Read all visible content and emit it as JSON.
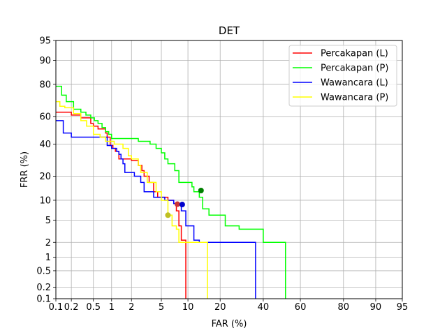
{
  "chart_data": {
    "type": "line",
    "title": "DET",
    "xlabel": "FAR (%)",
    "ylabel": "FRR (%)",
    "scale": "normal-deviate (probit)",
    "xlim": [
      0.1,
      95
    ],
    "ylim": [
      0.1,
      95
    ],
    "xticks": [
      0.1,
      0.2,
      0.5,
      1,
      2,
      5,
      10,
      20,
      40,
      60,
      80,
      90,
      95
    ],
    "xtick_labels": [
      "0.1",
      "0.2",
      "0.5",
      "1",
      "2",
      "5",
      "10",
      "20",
      "40",
      "60",
      "80",
      "90",
      "95"
    ],
    "yticks": [
      0.1,
      0.2,
      0.5,
      1,
      2,
      5,
      10,
      20,
      40,
      60,
      80,
      90,
      95
    ],
    "ytick_labels": [
      "0.1",
      "0.2",
      "0.5",
      "1",
      "2",
      "5",
      "10",
      "20",
      "40",
      "60",
      "80",
      "90",
      "95"
    ],
    "grid": true,
    "legend_position": "top-right",
    "series": [
      {
        "name": "Percakapan (L)",
        "color": "#ff0000",
        "x": [
          0.1,
          0.2,
          0.2,
          0.3,
          0.3,
          0.45,
          0.45,
          0.5,
          0.5,
          0.6,
          0.6,
          0.8,
          0.8,
          0.85,
          0.85,
          0.95,
          0.95,
          1.05,
          1.05,
          1.15,
          1.15,
          1.3,
          1.3,
          2.0,
          2.0,
          2.5,
          2.5,
          2.8,
          2.8,
          3.0,
          3.0,
          3.5,
          3.5,
          4.0,
          4.0,
          4.5,
          4.5,
          6.0,
          6.0,
          7.0,
          7.0,
          7.5,
          7.5,
          8.0,
          8.0,
          8.5,
          8.5,
          9.5,
          9.5,
          9.5
        ],
        "y": [
          63,
          63,
          61,
          61,
          59,
          59,
          55,
          55,
          53,
          53,
          51,
          51,
          48,
          48,
          45,
          45,
          39,
          39,
          37,
          37,
          35,
          35,
          30,
          30,
          29,
          29,
          26,
          26,
          23,
          23,
          20,
          20,
          17,
          17,
          13,
          13,
          11,
          11,
          10,
          10,
          9,
          9,
          7,
          7,
          4,
          4,
          2.2,
          2.2,
          2.0,
          0.1
        ]
      },
      {
        "name": "Percakapan (P)",
        "color": "#00ff00",
        "x": [
          0.1,
          0.13,
          0.13,
          0.16,
          0.16,
          0.22,
          0.22,
          0.3,
          0.3,
          0.37,
          0.37,
          0.45,
          0.45,
          0.52,
          0.52,
          0.6,
          0.6,
          0.7,
          0.7,
          0.8,
          0.8,
          0.9,
          0.9,
          1.0,
          1.0,
          2.5,
          2.5,
          3.6,
          3.6,
          4.3,
          4.3,
          5.0,
          5.0,
          5.5,
          5.5,
          6.0,
          6.0,
          7.2,
          7.2,
          8.0,
          8.0,
          11.0,
          11.0,
          11.5,
          11.5,
          13.0,
          13.0,
          14.0,
          14.0,
          16.0,
          16.0,
          22.0,
          22.0,
          28.0,
          28.0,
          40.0,
          40.0,
          52.0,
          52.0
        ],
        "y": [
          79,
          79,
          74,
          74,
          70,
          70,
          65,
          65,
          63,
          63,
          61,
          61,
          59,
          59,
          57,
          57,
          55,
          55,
          52,
          52,
          49,
          49,
          47,
          47,
          44,
          44,
          42,
          42,
          40,
          40,
          37,
          37,
          34,
          34,
          30,
          30,
          27,
          27,
          23,
          23,
          17,
          17,
          15,
          15,
          13,
          13,
          11,
          11,
          7.5,
          7.5,
          6,
          6,
          4,
          4,
          3.5,
          3.5,
          2.0,
          2.0,
          0.1
        ]
      },
      {
        "name": "Wawancara (L)",
        "color": "#0000ff",
        "x": [
          0.1,
          0.14,
          0.14,
          0.2,
          0.2,
          0.85,
          0.85,
          1.0,
          1.0,
          1.2,
          1.2,
          1.3,
          1.3,
          1.4,
          1.4,
          1.5,
          1.5,
          1.6,
          1.6,
          2.2,
          2.2,
          2.7,
          2.7,
          3.0,
          3.0,
          4.0,
          4.0,
          5.5,
          5.5,
          7.0,
          7.0,
          8.5,
          8.5,
          9.5,
          9.5,
          11.5,
          11.5,
          13.0,
          13.0,
          36.0,
          36.0
        ],
        "y": [
          57,
          57,
          48,
          48,
          45,
          45,
          39,
          39,
          37,
          37,
          35,
          35,
          33,
          33,
          30,
          30,
          27,
          27,
          22,
          22,
          20,
          20,
          17,
          17,
          13,
          13,
          11,
          11,
          10,
          10,
          9,
          9,
          7,
          7,
          4,
          4,
          2.2,
          2.2,
          2.0,
          2.0,
          0.1
        ]
      },
      {
        "name": "Wawancara (P)",
        "color": "#ffff00",
        "x": [
          0.1,
          0.12,
          0.12,
          0.15,
          0.15,
          0.22,
          0.22,
          0.3,
          0.3,
          0.38,
          0.38,
          0.5,
          0.5,
          0.65,
          0.65,
          0.8,
          0.8,
          1.1,
          1.1,
          1.5,
          1.5,
          1.8,
          1.8,
          2.0,
          2.0,
          2.5,
          2.5,
          2.7,
          2.7,
          3.3,
          3.3,
          4.3,
          4.3,
          5.0,
          5.0,
          6.0,
          6.0,
          6.7,
          6.7,
          7.5,
          7.5,
          8.0,
          8.0,
          15.5,
          15.5
        ],
        "y": [
          70,
          70,
          67,
          67,
          66,
          66,
          62,
          62,
          57,
          57,
          53,
          53,
          47,
          47,
          45,
          45,
          42,
          42,
          40,
          40,
          37,
          37,
          32,
          32,
          30,
          30,
          26,
          26,
          22,
          22,
          17,
          17,
          13,
          13,
          10,
          10,
          6,
          6,
          4,
          4,
          3.5,
          3.5,
          2.0,
          2.0,
          0.1
        ]
      }
    ],
    "markers": [
      {
        "series": "Percakapan (L)",
        "x": 7.7,
        "y": 8.8,
        "color": "#cc3333"
      },
      {
        "series": "Percakapan (P)",
        "x": 13.5,
        "y": 13.5,
        "color": "#008000"
      },
      {
        "series": "Wawancara (L)",
        "x": 8.7,
        "y": 8.7,
        "color": "#0000cc"
      },
      {
        "series": "Wawancara (P)",
        "x": 6.0,
        "y": 6.0,
        "color": "#bfbf22"
      }
    ]
  }
}
